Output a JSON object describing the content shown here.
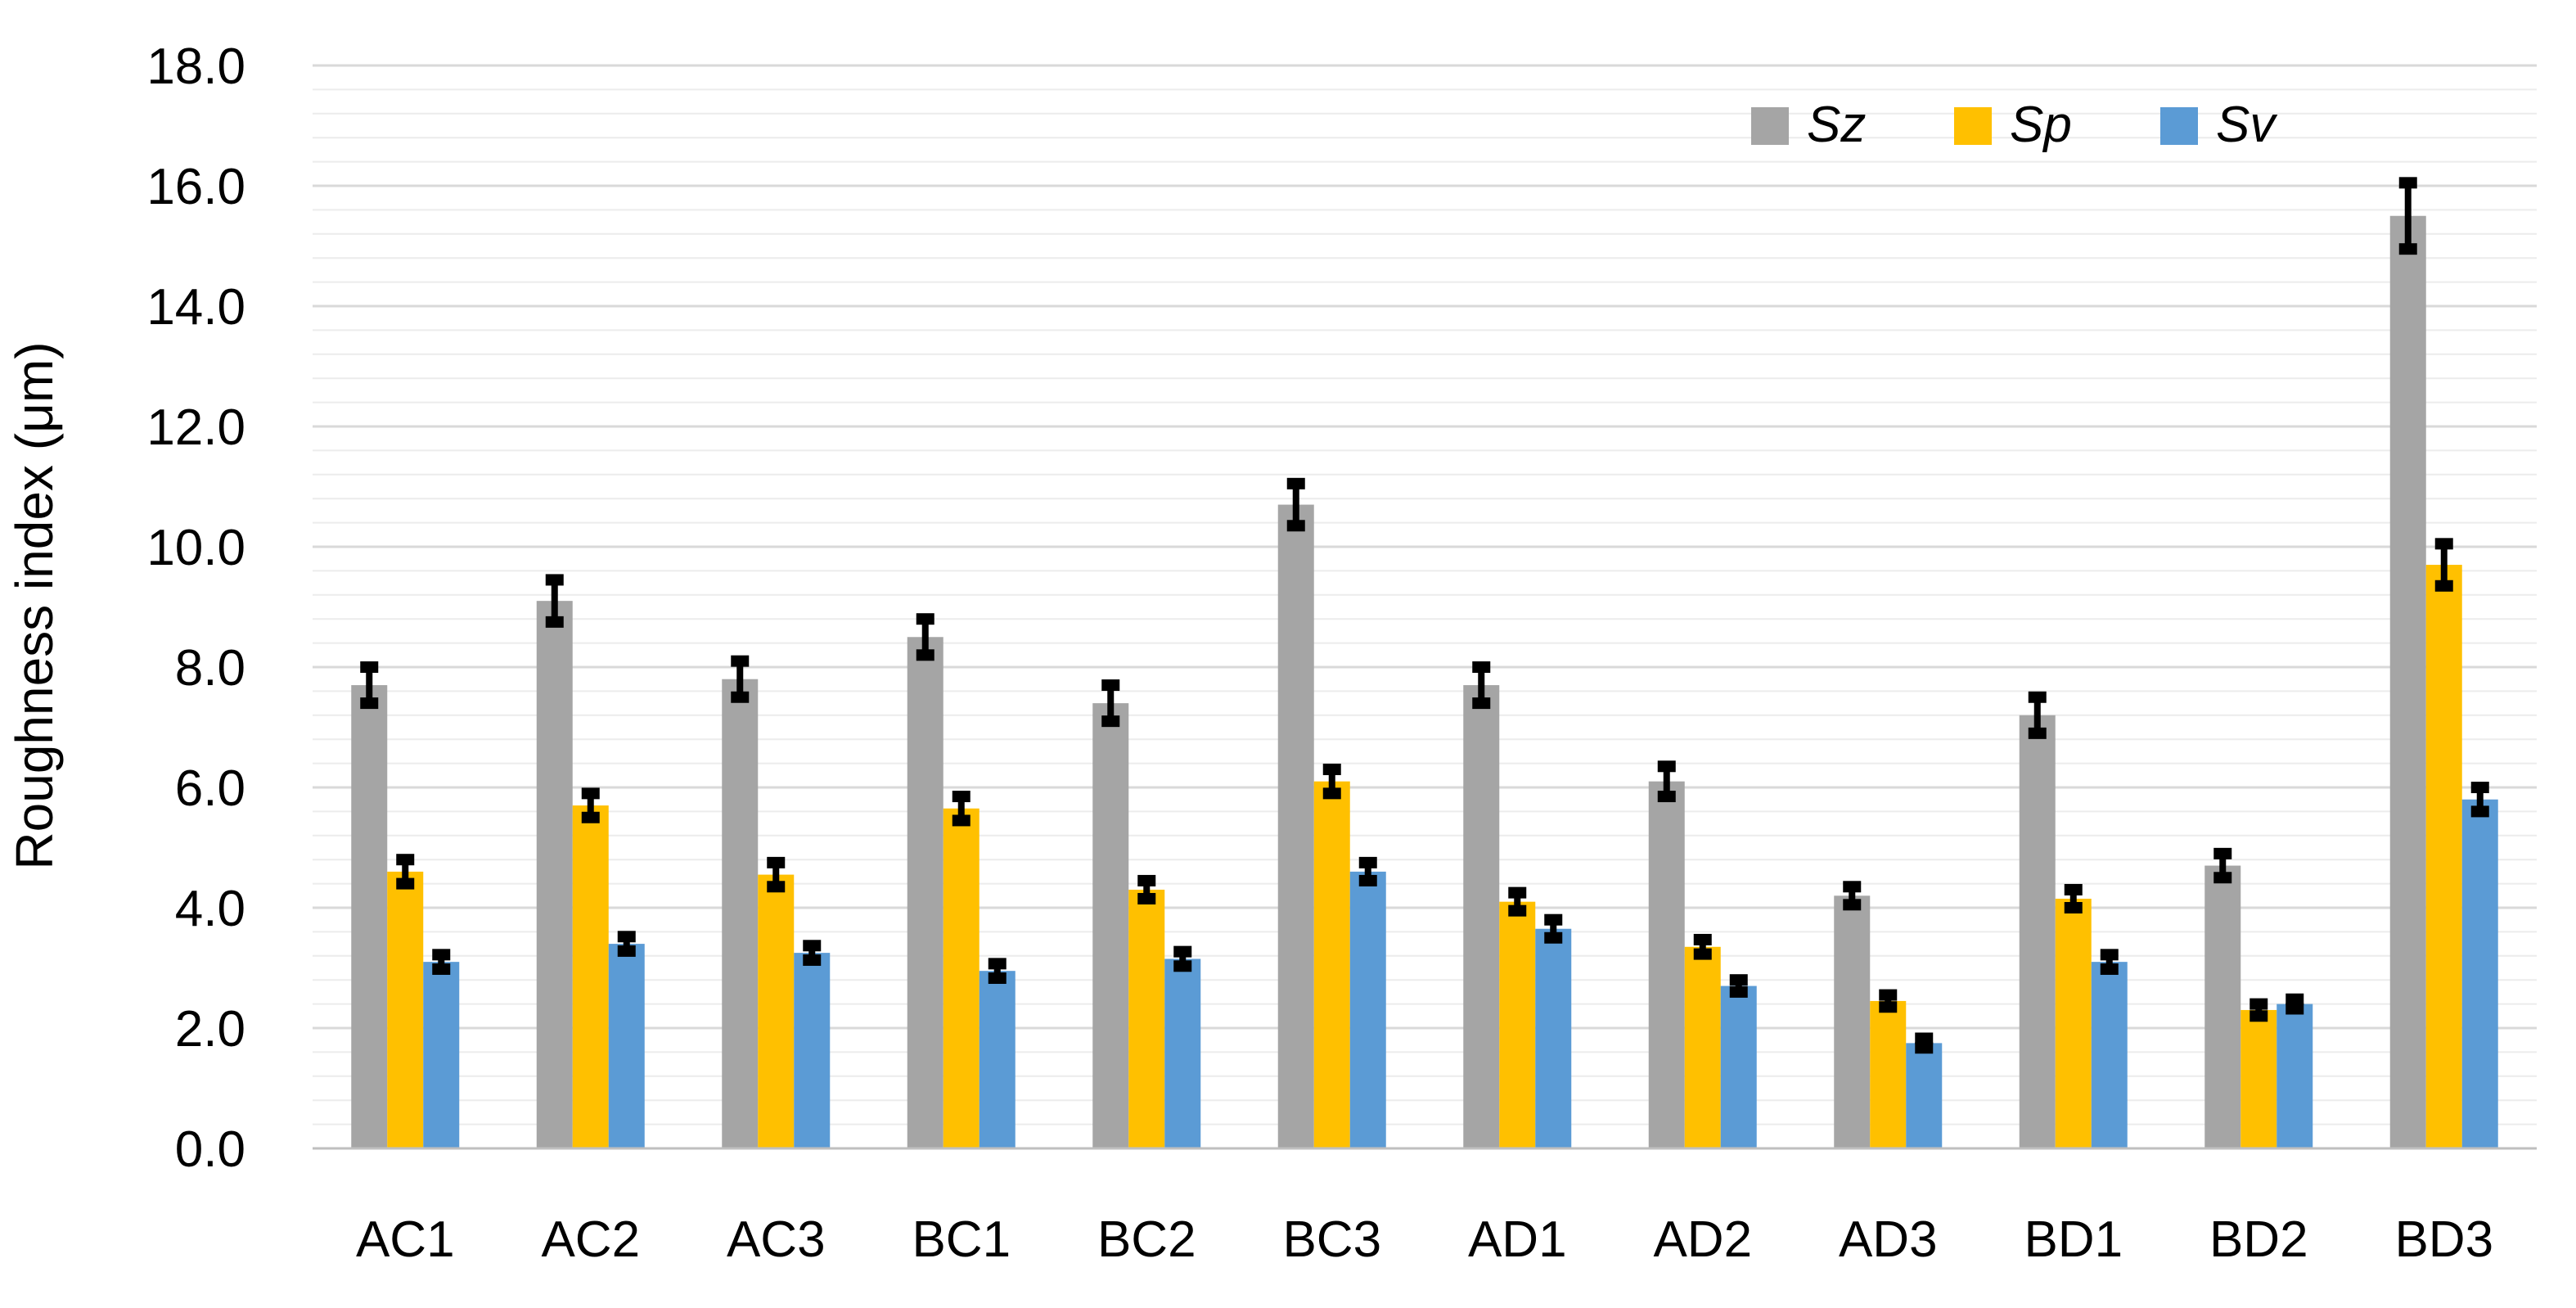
{
  "chart_data": {
    "type": "bar",
    "title": "",
    "xlabel": "",
    "ylabel": "Roughness index (μm)",
    "ylim": [
      0,
      18
    ],
    "ytick_step": 2,
    "ytick_labels": [
      "0.0",
      "2.0",
      "4.0",
      "6.0",
      "8.0",
      "10.0",
      "12.0",
      "14.0",
      "16.0",
      "18.0"
    ],
    "minor_grid_step": 0.4,
    "grid": true,
    "legend_position": "top-right",
    "categories": [
      "AC1",
      "AC2",
      "AC3",
      "BC1",
      "BC2",
      "BC3",
      "AD1",
      "AD2",
      "AD3",
      "BD1",
      "BD2",
      "BD3"
    ],
    "series": [
      {
        "name": "Sz",
        "color": "#A5A5A5",
        "values": [
          7.7,
          9.1,
          7.8,
          8.5,
          7.4,
          10.7,
          7.7,
          6.1,
          4.2,
          7.2,
          4.7,
          15.5
        ],
        "errors": [
          0.3,
          0.35,
          0.3,
          0.3,
          0.3,
          0.35,
          0.3,
          0.25,
          0.15,
          0.3,
          0.2,
          0.55
        ]
      },
      {
        "name": "Sp",
        "color": "#FFC000",
        "values": [
          4.6,
          5.7,
          4.55,
          5.65,
          4.3,
          6.1,
          4.1,
          3.35,
          2.45,
          4.15,
          2.3,
          9.7
        ],
        "errors": [
          0.2,
          0.2,
          0.2,
          0.2,
          0.15,
          0.2,
          0.15,
          0.12,
          0.1,
          0.15,
          0.1,
          0.35
        ]
      },
      {
        "name": "Sv",
        "color": "#5B9BD5",
        "values": [
          3.1,
          3.4,
          3.25,
          2.95,
          3.15,
          4.6,
          3.65,
          2.7,
          1.75,
          3.1,
          2.4,
          5.8
        ],
        "errors": [
          0.12,
          0.12,
          0.12,
          0.12,
          0.12,
          0.15,
          0.15,
          0.1,
          0.08,
          0.12,
          0.08,
          0.2
        ]
      }
    ]
  }
}
